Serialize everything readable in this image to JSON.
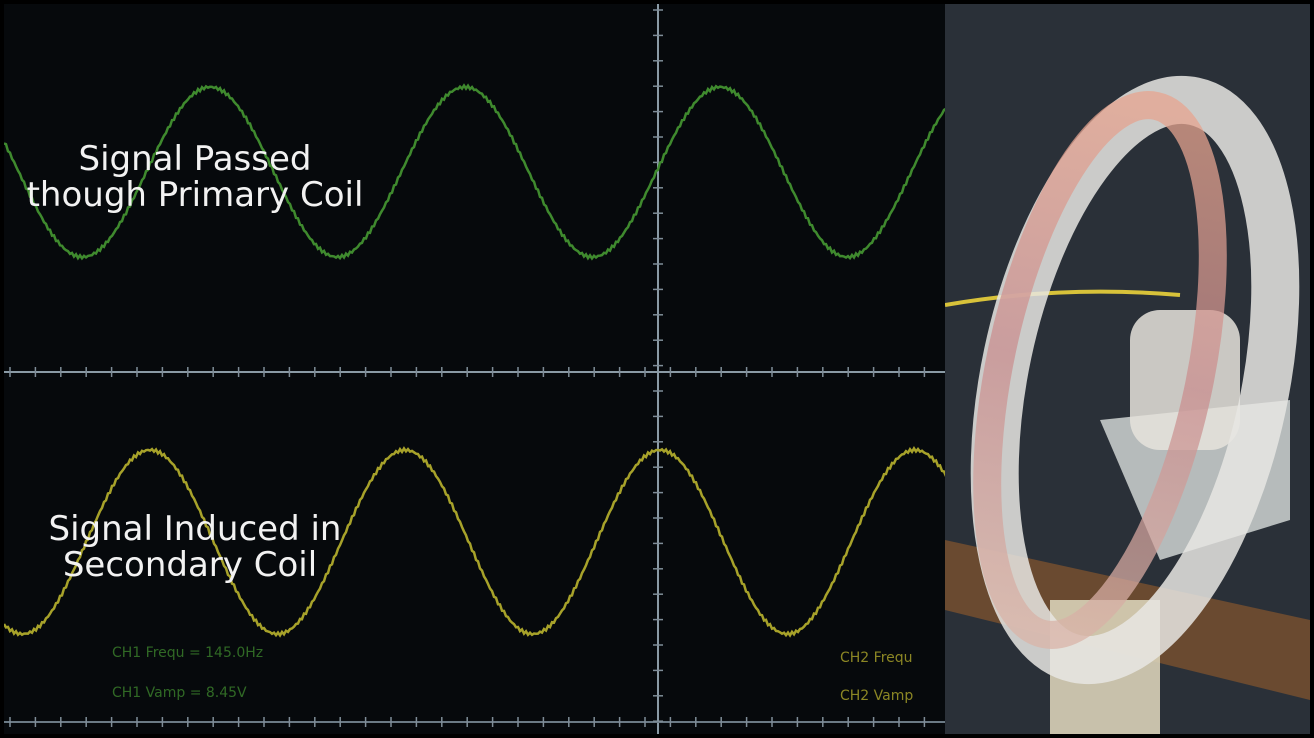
{
  "oscilloscope": {
    "primary_label": [
      "Signal Passed",
      "though Primary Coil"
    ],
    "secondary_label": [
      "Signal Induced in",
      "Secondary Coil"
    ],
    "readouts": {
      "ch1_frequency": "CH1 Frequ = 145.0Hz",
      "ch1_amplitude": "CH1 Vamp = 8.45V",
      "ch2_frequency": "CH2 Frequ",
      "ch2_amplitude": "CH2 Vamp"
    }
  }
}
